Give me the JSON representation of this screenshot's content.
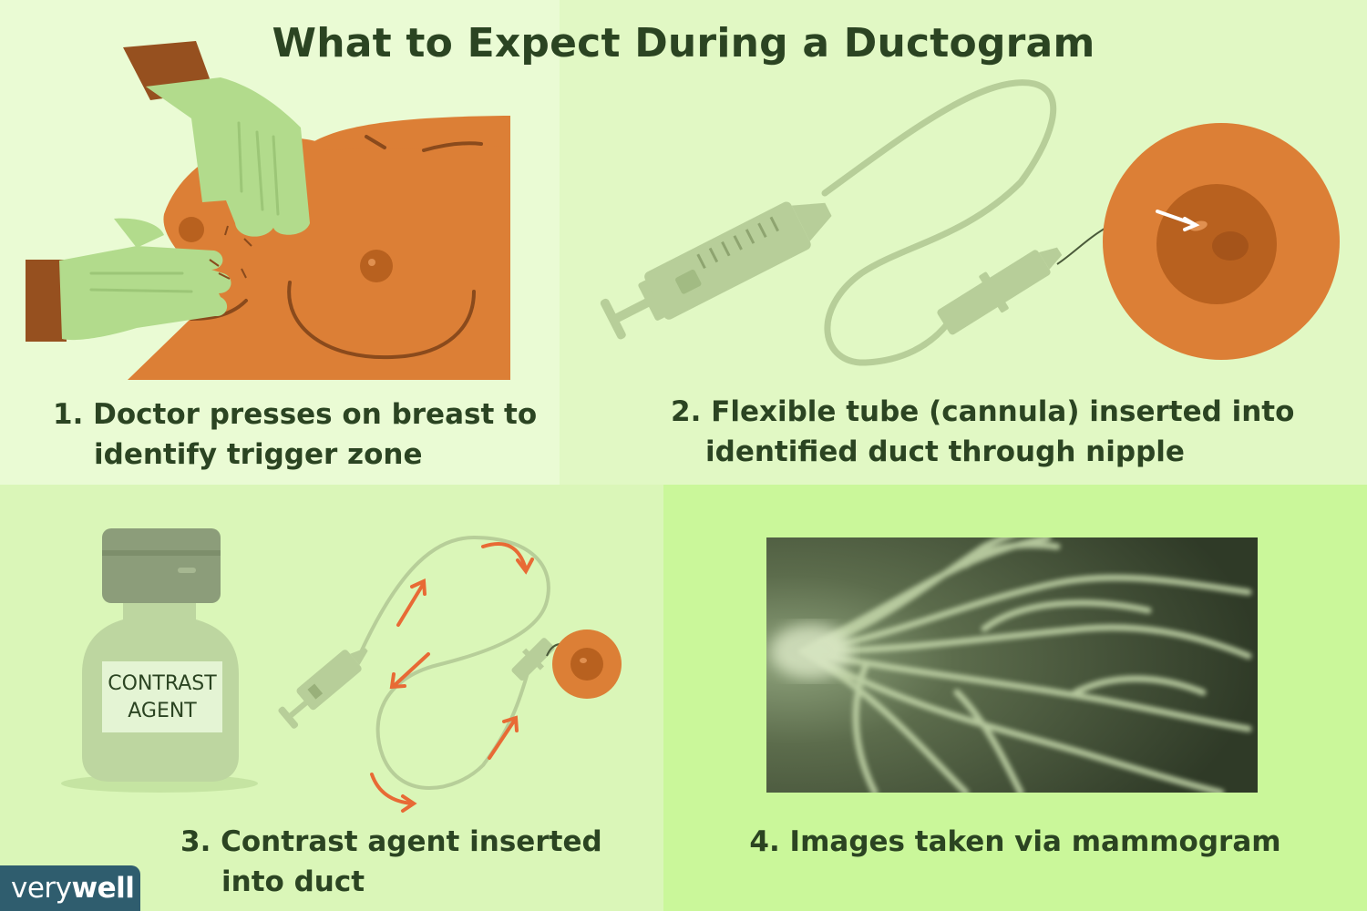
{
  "title": "What to Expect During a Ductogram",
  "steps": [
    {
      "line1": "1. Doctor presses on breast to",
      "line2": "identify trigger zone"
    },
    {
      "line1": "2. Flexible tube (cannula) inserted into",
      "line2": "identified duct through nipple"
    },
    {
      "line1": "3. Contrast agent inserted",
      "line2": "into duct"
    },
    {
      "line1": "4. Images taken via mammogram",
      "line2": ""
    }
  ],
  "vial_label": {
    "line1": "CONTRAST",
    "line2": "AGENT"
  },
  "brand": {
    "part1": "very",
    "part2": "well"
  },
  "colors": {
    "panel1_bg": "#eafbd4",
    "panel2_bg": "#e1f8c4",
    "panel3_bg": "#daf6b8",
    "panel4_bg": "#caf79a",
    "skin": "#dc7f36",
    "glove": "#b2db8c",
    "device": "#b7ce99",
    "arrow": "#e86a35",
    "text": "#2b4422",
    "brand_bg": "#2f5d6e"
  },
  "icons": [
    "glove-hand-icon",
    "syringe-icon",
    "nipple-icon",
    "vial-icon",
    "arrow-icon",
    "mammogram-image"
  ]
}
